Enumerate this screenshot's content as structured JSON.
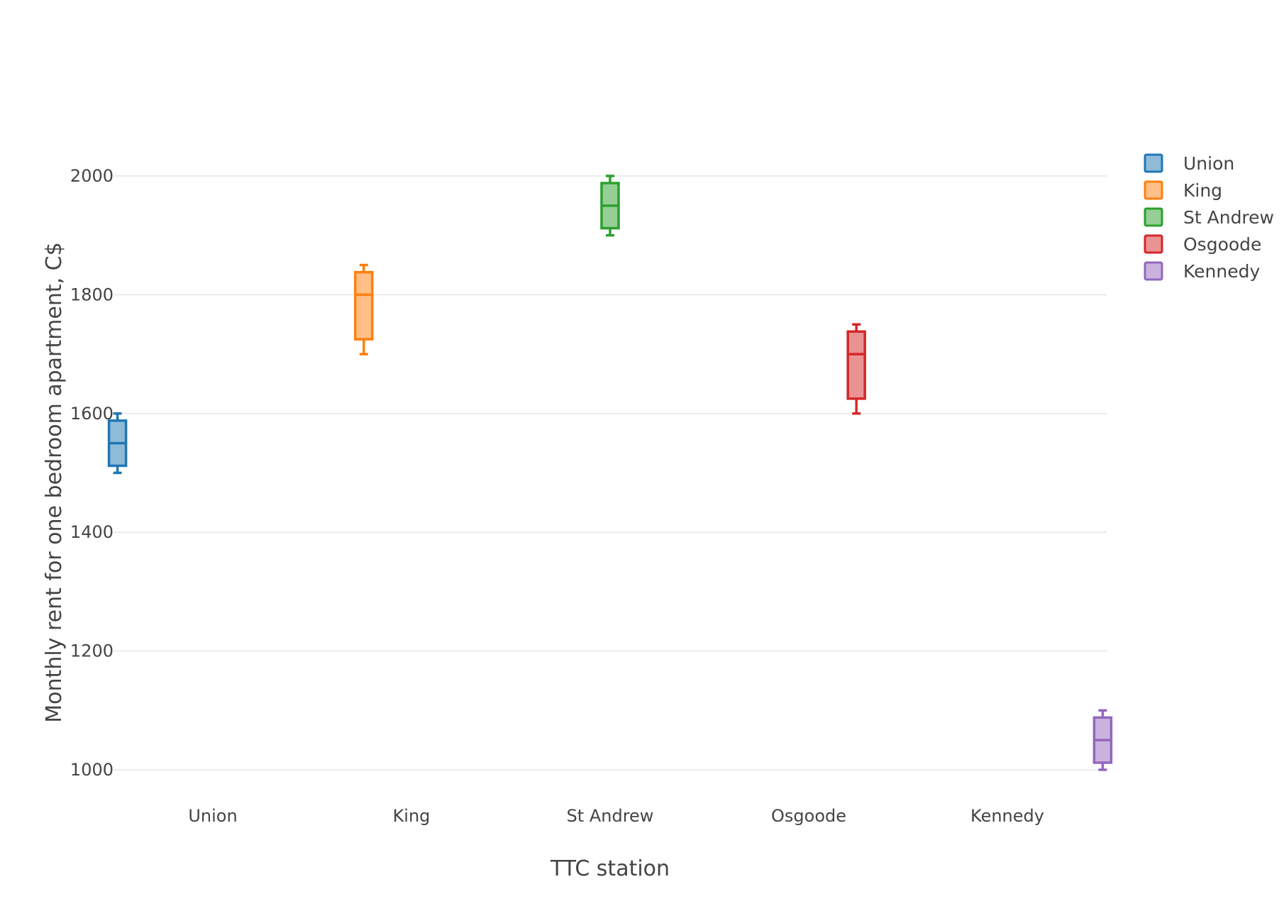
{
  "chart_data": {
    "type": "box",
    "xlabel": "TTC station",
    "ylabel": "Monthly rent for one bedroom apartment, C$",
    "ylim": [
      1000,
      2000
    ],
    "yticks": [
      1000,
      1200,
      1400,
      1600,
      1800,
      2000
    ],
    "grid": true,
    "legend_placement": "top-right",
    "categories": [
      "Union",
      "King",
      "St Andrew",
      "Osgoode",
      "Kennedy"
    ],
    "series": [
      {
        "name": "Union",
        "color": "#1f77b4",
        "min": 1500,
        "q1": 1512,
        "median": 1550,
        "q3": 1588,
        "max": 1600
      },
      {
        "name": "King",
        "color": "#ff7f0e",
        "min": 1700,
        "q1": 1725,
        "median": 1800,
        "q3": 1838,
        "max": 1850
      },
      {
        "name": "St Andrew",
        "color": "#2ca02c",
        "min": 1900,
        "q1": 1912,
        "median": 1950,
        "q3": 1988,
        "max": 2000
      },
      {
        "name": "Osgoode",
        "color": "#d62728",
        "min": 1600,
        "q1": 1625,
        "median": 1700,
        "q3": 1738,
        "max": 1750
      },
      {
        "name": "Kennedy",
        "color": "#9467bd",
        "min": 1000,
        "q1": 1012,
        "median": 1050,
        "q3": 1088,
        "max": 1100
      }
    ]
  }
}
